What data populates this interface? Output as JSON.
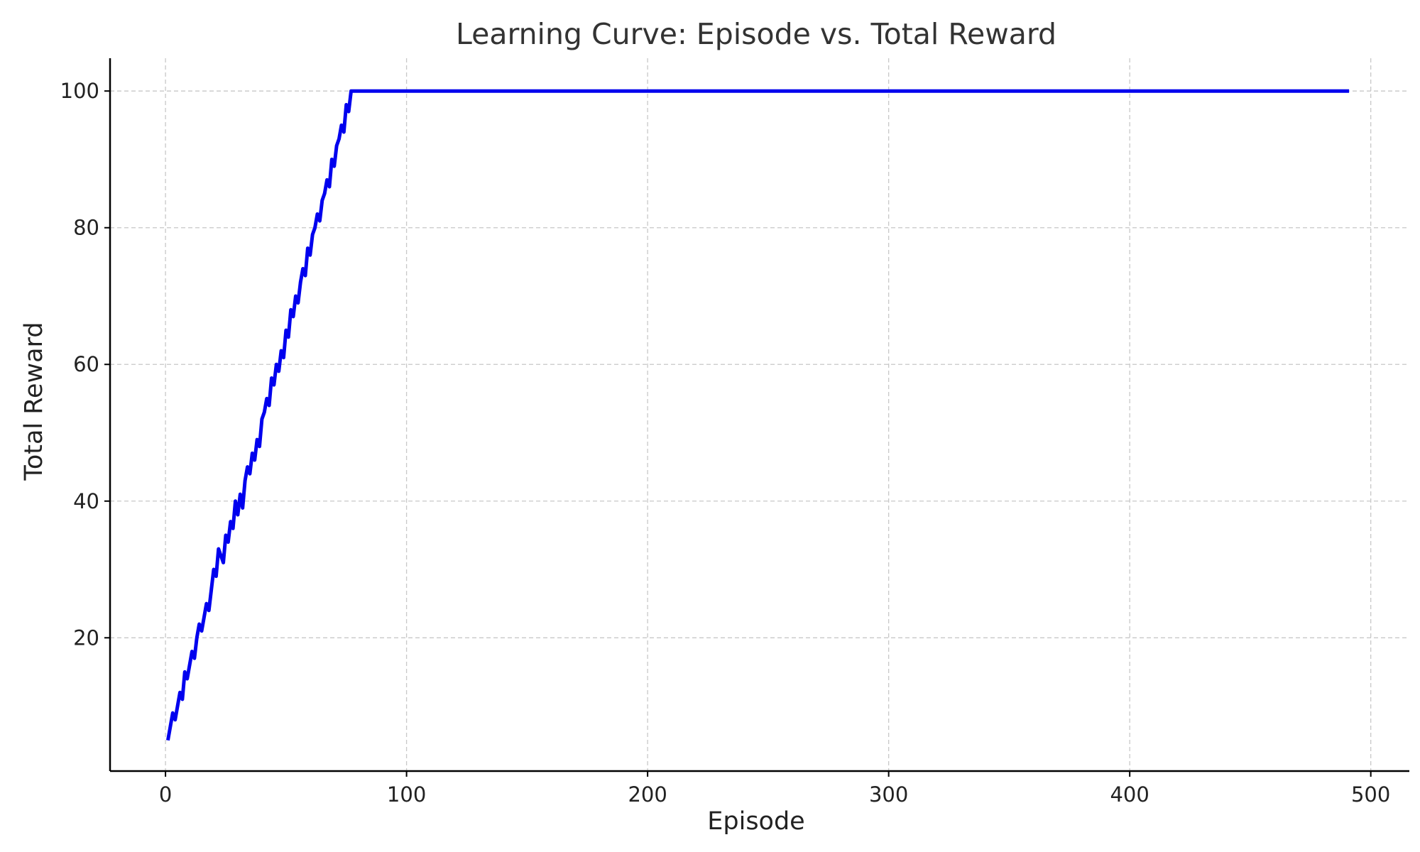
{
  "chart_data": {
    "type": "line",
    "title": "Learning Curve: Episode vs. Total Reward",
    "xlabel": "Episode",
    "ylabel": "Total Reward",
    "xlim": [
      -23,
      516
    ],
    "ylim": [
      0.5,
      104.8
    ],
    "xticks": [
      0,
      100,
      200,
      300,
      400,
      500
    ],
    "yticks": [
      20,
      40,
      60,
      80,
      100
    ],
    "grid": true,
    "legend": "none",
    "series": [
      {
        "color": "#0000ee",
        "x": [
          1,
          2,
          3,
          4,
          5,
          6,
          7,
          8,
          9,
          10,
          11,
          12,
          13,
          14,
          15,
          16,
          17,
          18,
          19,
          20,
          21,
          22,
          23,
          24,
          25,
          26,
          27,
          28,
          29,
          30,
          31,
          32,
          33,
          34,
          35,
          36,
          37,
          38,
          39,
          40,
          41,
          42,
          43,
          44,
          45,
          46,
          47,
          48,
          49,
          50,
          51,
          52,
          53,
          54,
          55,
          56,
          57,
          58,
          59,
          60,
          61,
          62,
          63,
          64,
          65,
          66,
          67,
          68,
          69,
          70,
          71,
          72,
          73,
          74,
          75,
          76,
          77,
          78,
          79,
          80,
          81,
          82,
          83,
          84,
          85,
          86,
          87,
          88,
          89,
          90,
          91,
          491
        ],
        "y": [
          5,
          7,
          9,
          8,
          10,
          12,
          11,
          15,
          14,
          16,
          18,
          17,
          20,
          22,
          21,
          23,
          25,
          24,
          27,
          30,
          29,
          33,
          32,
          31,
          35,
          34,
          37,
          36,
          40,
          38,
          41,
          39,
          43,
          45,
          44,
          47,
          46,
          49,
          48,
          52,
          53,
          55,
          54,
          58,
          57,
          60,
          59,
          62,
          61,
          65,
          64,
          68,
          67,
          70,
          69,
          72,
          74,
          73,
          77,
          76,
          79,
          80,
          82,
          81,
          84,
          85,
          87,
          86,
          90,
          89,
          92,
          93,
          95,
          94,
          98,
          97,
          100,
          100,
          100,
          100,
          100,
          100,
          100,
          100,
          100,
          100,
          100,
          100,
          100,
          100,
          100,
          100
        ]
      }
    ]
  }
}
